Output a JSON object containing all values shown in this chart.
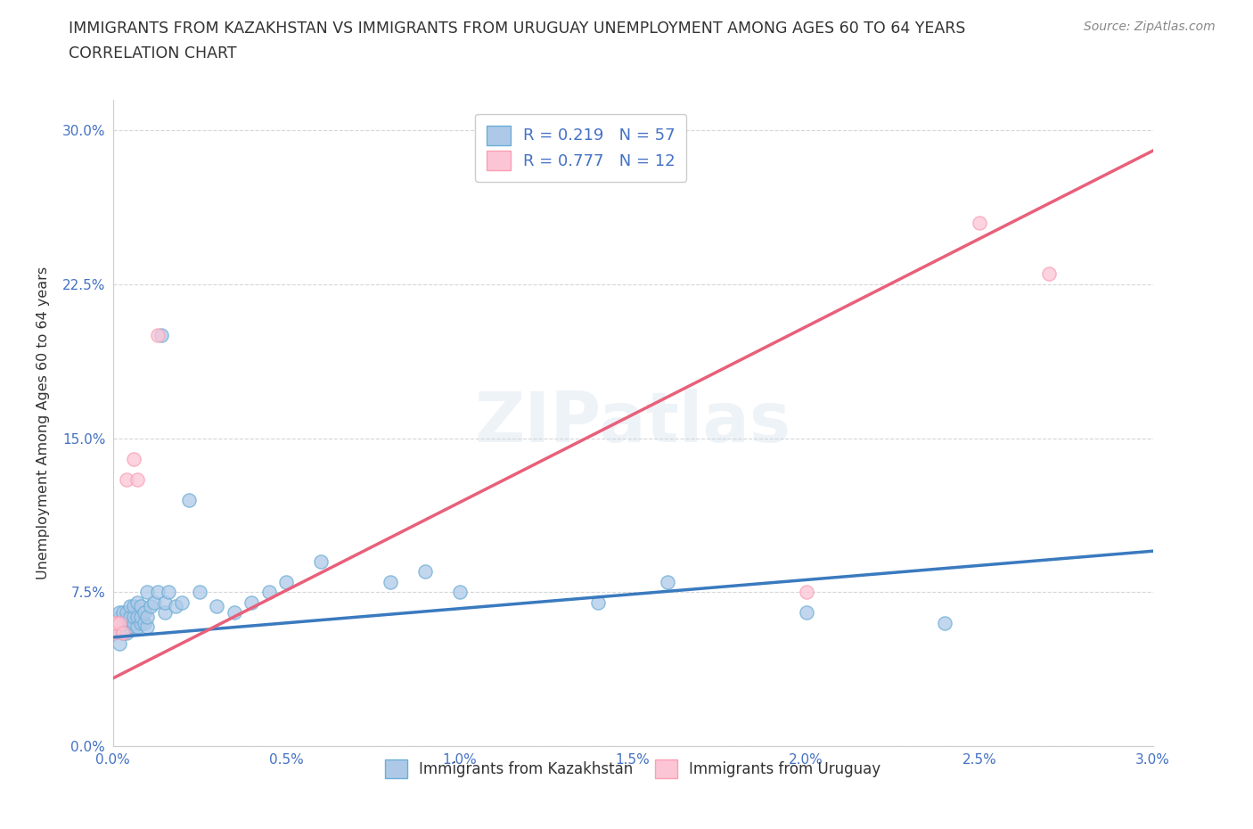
{
  "title_line1": "IMMIGRANTS FROM KAZAKHSTAN VS IMMIGRANTS FROM URUGUAY UNEMPLOYMENT AMONG AGES 60 TO 64 YEARS",
  "title_line2": "CORRELATION CHART",
  "source_text": "Source: ZipAtlas.com",
  "ylabel": "Unemployment Among Ages 60 to 64 years",
  "xlim": [
    0.0,
    0.03
  ],
  "ylim": [
    0.0,
    0.315
  ],
  "xticks": [
    0.0,
    0.005,
    0.01,
    0.015,
    0.02,
    0.025,
    0.03
  ],
  "xtick_labels": [
    "0.0%",
    "0.5%",
    "1.0%",
    "1.5%",
    "2.0%",
    "2.5%",
    "3.0%"
  ],
  "yticks": [
    0.0,
    0.075,
    0.15,
    0.225,
    0.3
  ],
  "ytick_labels": [
    "0.0%",
    "7.5%",
    "15.0%",
    "22.5%",
    "30.0%"
  ],
  "blue_face": "#aec9e8",
  "blue_edge": "#6baed6",
  "pink_face": "#fcc5d5",
  "pink_edge": "#fa9fb5",
  "trend_blue": "#3a7abf",
  "trend_pink": "#e8607a",
  "R_kaz": 0.219,
  "N_kaz": 57,
  "R_uru": 0.777,
  "N_uru": 12,
  "legend_label_kaz": "Immigrants from Kazakhstan",
  "legend_label_uru": "Immigrants from Uruguay",
  "watermark": "ZIPatlas",
  "background_color": "#ffffff",
  "title_color": "#333333",
  "tick_color": "#4472c4",
  "grid_color": "#bbbbbb",
  "kaz_x": [
    0.0,
    0.0,
    0.0001,
    0.0001,
    0.0002,
    0.0002,
    0.0002,
    0.0003,
    0.0003,
    0.0003,
    0.0004,
    0.0004,
    0.0004,
    0.0004,
    0.0005,
    0.0005,
    0.0005,
    0.0005,
    0.0006,
    0.0006,
    0.0006,
    0.0006,
    0.0007,
    0.0007,
    0.0007,
    0.0008,
    0.0008,
    0.0008,
    0.0009,
    0.0009,
    0.001,
    0.001,
    0.001,
    0.0011,
    0.0012,
    0.0013,
    0.0014,
    0.0015,
    0.0015,
    0.0016,
    0.0018,
    0.002,
    0.0022,
    0.0025,
    0.003,
    0.0035,
    0.004,
    0.0045,
    0.005,
    0.006,
    0.008,
    0.009,
    0.01,
    0.014,
    0.016,
    0.02,
    0.024
  ],
  "kaz_y": [
    0.055,
    0.06,
    0.058,
    0.062,
    0.05,
    0.06,
    0.065,
    0.055,
    0.06,
    0.065,
    0.055,
    0.06,
    0.062,
    0.065,
    0.058,
    0.06,
    0.063,
    0.068,
    0.058,
    0.06,
    0.063,
    0.068,
    0.058,
    0.063,
    0.07,
    0.06,
    0.063,
    0.068,
    0.06,
    0.065,
    0.058,
    0.063,
    0.075,
    0.068,
    0.07,
    0.075,
    0.2,
    0.065,
    0.07,
    0.075,
    0.068,
    0.07,
    0.12,
    0.075,
    0.068,
    0.065,
    0.07,
    0.075,
    0.08,
    0.09,
    0.08,
    0.085,
    0.075,
    0.07,
    0.08,
    0.065,
    0.06
  ],
  "uru_x": [
    0.0,
    0.0,
    0.0001,
    0.0002,
    0.0003,
    0.0004,
    0.0006,
    0.0007,
    0.0013,
    0.02,
    0.025,
    0.027
  ],
  "uru_y": [
    0.055,
    0.06,
    0.06,
    0.06,
    0.055,
    0.13,
    0.14,
    0.13,
    0.2,
    0.075,
    0.255,
    0.23
  ],
  "trend_kaz_x0": 0.0,
  "trend_kaz_x1": 0.03,
  "trend_kaz_y0": 0.053,
  "trend_kaz_y1": 0.095,
  "trend_uru_x0": 0.0,
  "trend_uru_x1": 0.03,
  "trend_uru_y0": 0.033,
  "trend_uru_y1": 0.29
}
